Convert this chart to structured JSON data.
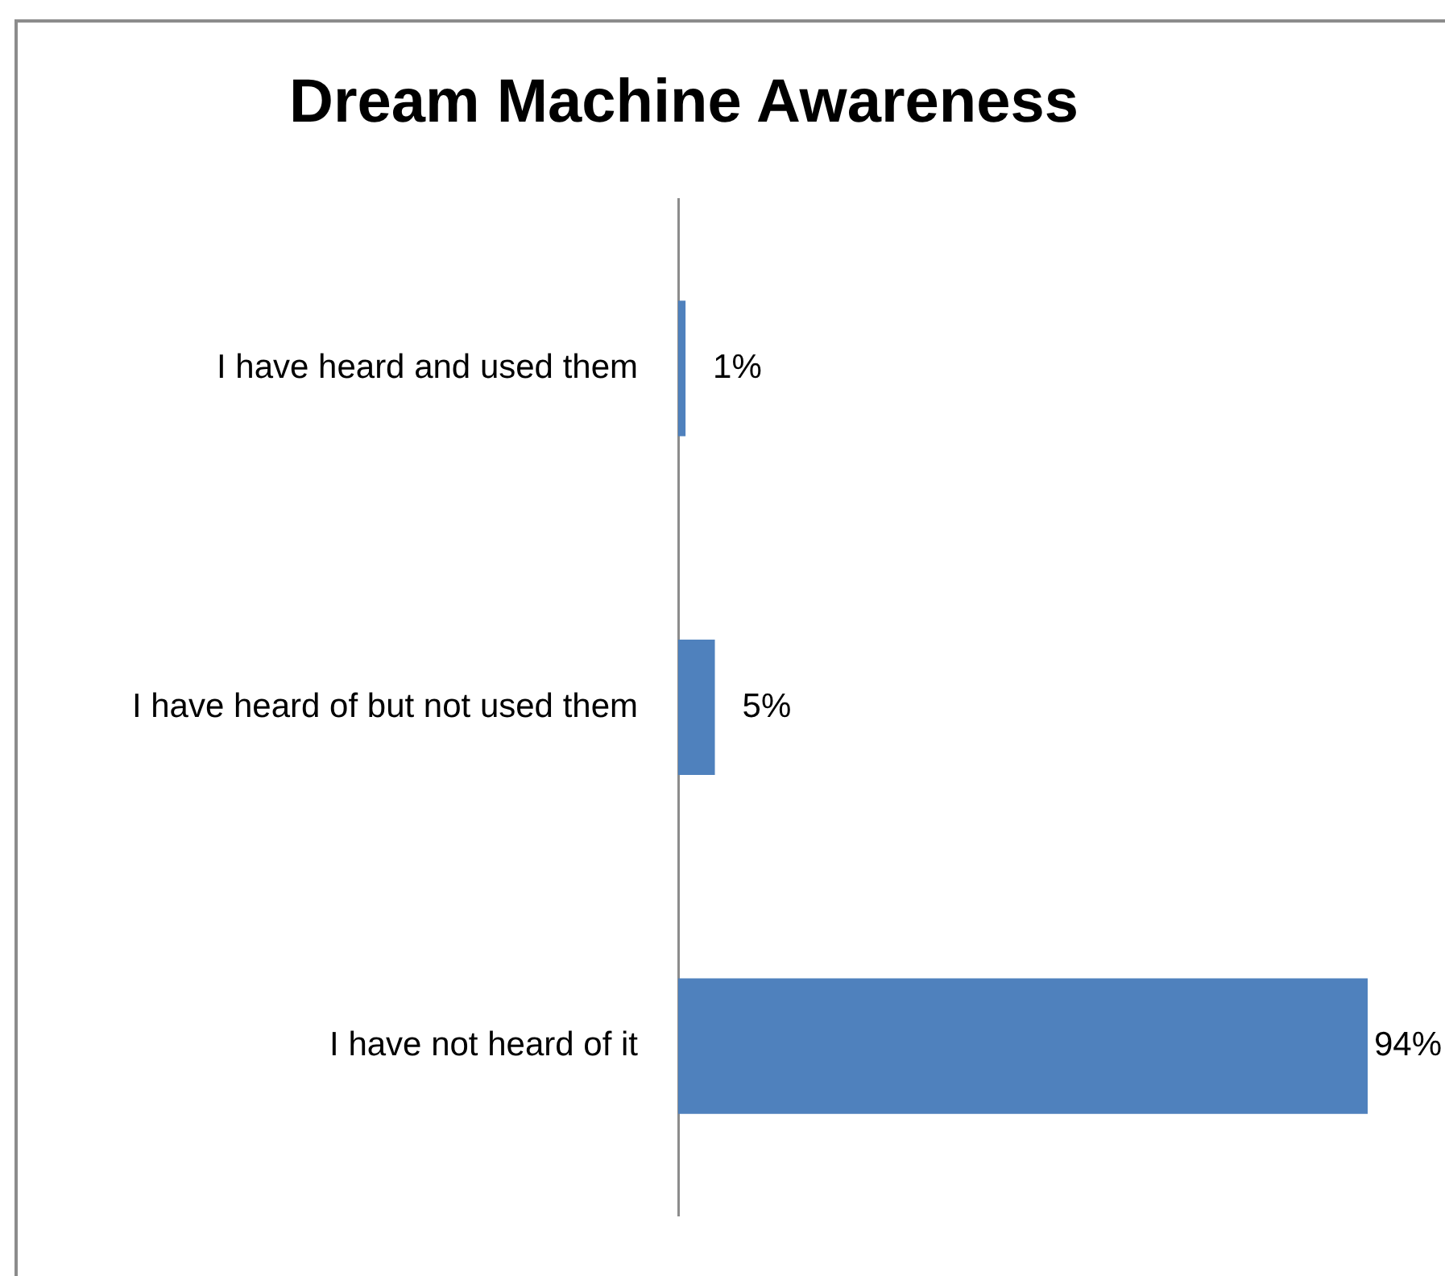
{
  "chart_data": {
    "type": "bar",
    "title": "Dream Machine Awareness",
    "orientation": "horizontal",
    "categories": [
      "I have heard and used them",
      "I have heard of but not used them",
      "I have not heard of it"
    ],
    "values": [
      1,
      5,
      94
    ],
    "color": "#4f81bd",
    "value_labels": [
      "1%",
      "5%",
      "94%"
    ],
    "grid": false,
    "legend": false
  }
}
